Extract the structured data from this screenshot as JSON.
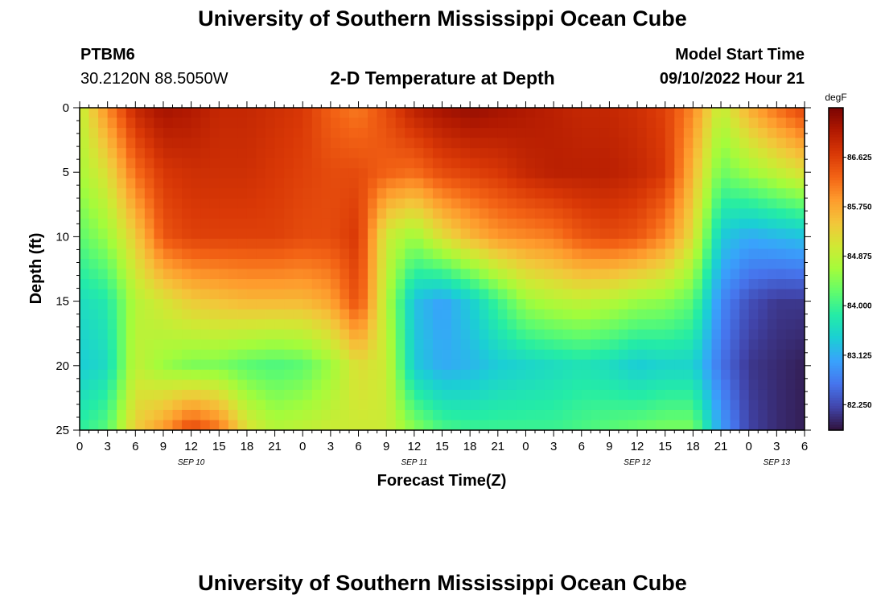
{
  "header": {
    "title": "University of Southern Mississippi Ocean Cube",
    "station": "PTBM6",
    "coords": "30.2120N  88.5050W",
    "subtitle": "2-D Temperature at Depth",
    "model_start_label": "Model Start Time",
    "model_start_value": "09/10/2022 Hour 21"
  },
  "footer": {
    "title": "University of Southern Mississippi Ocean Cube"
  },
  "chart_data": {
    "type": "heatmap",
    "title": "2-D Temperature at Depth",
    "xlabel": "Forecast Time(Z)",
    "ylabel": "Depth (ft)",
    "x_tick_labels": [
      "0",
      "3",
      "6",
      "9",
      "12",
      "15",
      "18",
      "21",
      "0",
      "3",
      "6",
      "9",
      "12",
      "15",
      "18",
      "21",
      "0",
      "3",
      "6",
      "9",
      "12",
      "15",
      "18",
      "21",
      "0",
      "3",
      "6"
    ],
    "x_range_hours": [
      0,
      78
    ],
    "date_labels": [
      {
        "label": "SEP 10",
        "hour": 12
      },
      {
        "label": "SEP 11",
        "hour": 36
      },
      {
        "label": "SEP 12",
        "hour": 60
      },
      {
        "label": "SEP 13",
        "hour": 75
      }
    ],
    "y_tick_labels": [
      "0",
      "5",
      "10",
      "15",
      "20",
      "25"
    ],
    "y_range_ft": [
      0,
      25
    ],
    "colorbar": {
      "unit": "degF",
      "min": 81.8,
      "max": 87.5,
      "tick_labels": [
        "86.625",
        "85.750",
        "84.875",
        "84.000",
        "83.125",
        "82.250"
      ],
      "colors": [
        "#30123b",
        "#4145ab",
        "#4675ed",
        "#39a2fc",
        "#1bcfd4",
        "#24eca6",
        "#61fc6c",
        "#a4fc3b",
        "#d1e834",
        "#f3c63a",
        "#fe9b2d",
        "#f36315",
        "#d93806",
        "#b11901",
        "#7a0403"
      ]
    },
    "series": [
      {
        "hour": 0,
        "depth_ft": [
          0,
          5,
          10,
          15,
          20,
          25
        ],
        "temp_f": [
          84.9,
          84.7,
          84.2,
          83.6,
          83.4,
          83.9
        ]
      },
      {
        "hour": 3,
        "depth_ft": [
          0,
          5,
          10,
          15,
          20,
          25
        ],
        "temp_f": [
          86.0,
          85.2,
          84.6,
          83.8,
          83.6,
          84.2
        ]
      },
      {
        "hour": 6,
        "depth_ft": [
          0,
          5,
          10,
          15,
          20,
          25
        ],
        "temp_f": [
          86.9,
          86.2,
          85.4,
          84.8,
          84.9,
          85.4
        ]
      },
      {
        "hour": 9,
        "depth_ft": [
          0,
          5,
          10,
          15,
          20,
          25
        ],
        "temp_f": [
          87.2,
          86.7,
          86.4,
          85.1,
          84.6,
          85.9
        ]
      },
      {
        "hour": 12,
        "depth_ft": [
          0,
          5,
          10,
          15,
          20,
          25
        ],
        "temp_f": [
          87.1,
          86.8,
          86.6,
          85.4,
          84.4,
          86.6
        ]
      },
      {
        "hour": 15,
        "depth_ft": [
          0,
          5,
          10,
          15,
          20,
          25
        ],
        "temp_f": [
          86.9,
          86.8,
          86.6,
          85.5,
          84.4,
          86.2
        ]
      },
      {
        "hour": 18,
        "depth_ft": [
          0,
          5,
          10,
          15,
          20,
          25
        ],
        "temp_f": [
          86.9,
          86.8,
          86.6,
          85.6,
          84.2,
          85.2
        ]
      },
      {
        "hour": 21,
        "depth_ft": [
          0,
          5,
          10,
          15,
          20,
          25
        ],
        "temp_f": [
          86.8,
          86.7,
          86.6,
          85.6,
          84.1,
          84.8
        ]
      },
      {
        "hour": 24,
        "depth_ft": [
          0,
          5,
          10,
          15,
          20,
          25
        ],
        "temp_f": [
          86.7,
          86.6,
          86.5,
          85.6,
          84.2,
          84.9
        ]
      },
      {
        "hour": 27,
        "depth_ft": [
          0,
          5,
          10,
          15,
          20,
          25
        ],
        "temp_f": [
          86.3,
          86.5,
          86.5,
          85.8,
          84.6,
          85.0
        ]
      },
      {
        "hour": 30,
        "depth_ft": [
          0,
          5,
          10,
          15,
          20,
          25
        ],
        "temp_f": [
          86.1,
          86.5,
          86.7,
          86.5,
          85.2,
          85.0
        ]
      },
      {
        "hour": 33,
        "depth_ft": [
          0,
          5,
          10,
          15,
          20,
          25
        ],
        "temp_f": [
          86.5,
          86.3,
          85.0,
          84.8,
          85.0,
          85.0
        ]
      },
      {
        "hour": 36,
        "depth_ft": [
          0,
          5,
          10,
          15,
          20,
          25
        ],
        "temp_f": [
          87.0,
          86.2,
          84.6,
          83.3,
          83.4,
          84.5
        ]
      },
      {
        "hour": 39,
        "depth_ft": [
          0,
          5,
          10,
          15,
          20,
          25
        ],
        "temp_f": [
          87.2,
          86.5,
          85.2,
          83.0,
          83.1,
          84.1
        ]
      },
      {
        "hour": 42,
        "depth_ft": [
          0,
          5,
          10,
          15,
          20,
          25
        ],
        "temp_f": [
          87.3,
          86.6,
          85.6,
          83.4,
          83.2,
          84.0
        ]
      },
      {
        "hour": 45,
        "depth_ft": [
          0,
          5,
          10,
          15,
          20,
          25
        ],
        "temp_f": [
          87.2,
          86.7,
          85.9,
          84.0,
          83.4,
          84.0
        ]
      },
      {
        "hour": 48,
        "depth_ft": [
          0,
          5,
          10,
          15,
          20,
          25
        ],
        "temp_f": [
          87.1,
          86.9,
          86.0,
          84.6,
          83.5,
          84.0
        ]
      },
      {
        "hour": 51,
        "depth_ft": [
          0,
          5,
          10,
          15,
          20,
          25
        ],
        "temp_f": [
          87.0,
          87.0,
          86.1,
          84.8,
          83.6,
          84.0
        ]
      },
      {
        "hour": 54,
        "depth_ft": [
          0,
          5,
          10,
          15,
          20,
          25
        ],
        "temp_f": [
          86.9,
          87.0,
          86.4,
          84.9,
          83.7,
          84.1
        ]
      },
      {
        "hour": 57,
        "depth_ft": [
          0,
          5,
          10,
          15,
          20,
          25
        ],
        "temp_f": [
          86.9,
          87.0,
          86.5,
          84.8,
          83.6,
          84.2
        ]
      },
      {
        "hour": 60,
        "depth_ft": [
          0,
          5,
          10,
          15,
          20,
          25
        ],
        "temp_f": [
          86.8,
          86.9,
          86.4,
          84.6,
          83.4,
          84.3
        ]
      },
      {
        "hour": 63,
        "depth_ft": [
          0,
          5,
          10,
          15,
          20,
          25
        ],
        "temp_f": [
          86.6,
          86.7,
          86.0,
          84.5,
          83.5,
          84.4
        ]
      },
      {
        "hour": 66,
        "depth_ft": [
          0,
          5,
          10,
          15,
          20,
          25
        ],
        "temp_f": [
          86.0,
          85.6,
          85.2,
          84.2,
          83.5,
          84.4
        ]
      },
      {
        "hour": 69,
        "depth_ft": [
          0,
          5,
          10,
          15,
          20,
          25
        ],
        "temp_f": [
          84.9,
          84.3,
          83.4,
          82.8,
          82.6,
          83.0
        ]
      },
      {
        "hour": 72,
        "depth_ft": [
          0,
          5,
          10,
          15,
          20,
          25
        ],
        "temp_f": [
          85.7,
          84.6,
          83.1,
          82.3,
          82.1,
          82.2
        ]
      },
      {
        "hour": 75,
        "depth_ft": [
          0,
          5,
          10,
          15,
          20,
          25
        ],
        "temp_f": [
          86.2,
          84.9,
          83.2,
          82.1,
          82.0,
          82.0
        ]
      },
      {
        "hour": 78,
        "depth_ft": [
          0,
          5,
          10,
          15,
          20,
          25
        ],
        "temp_f": [
          86.6,
          85.2,
          83.3,
          82.1,
          81.9,
          81.9
        ]
      }
    ]
  }
}
